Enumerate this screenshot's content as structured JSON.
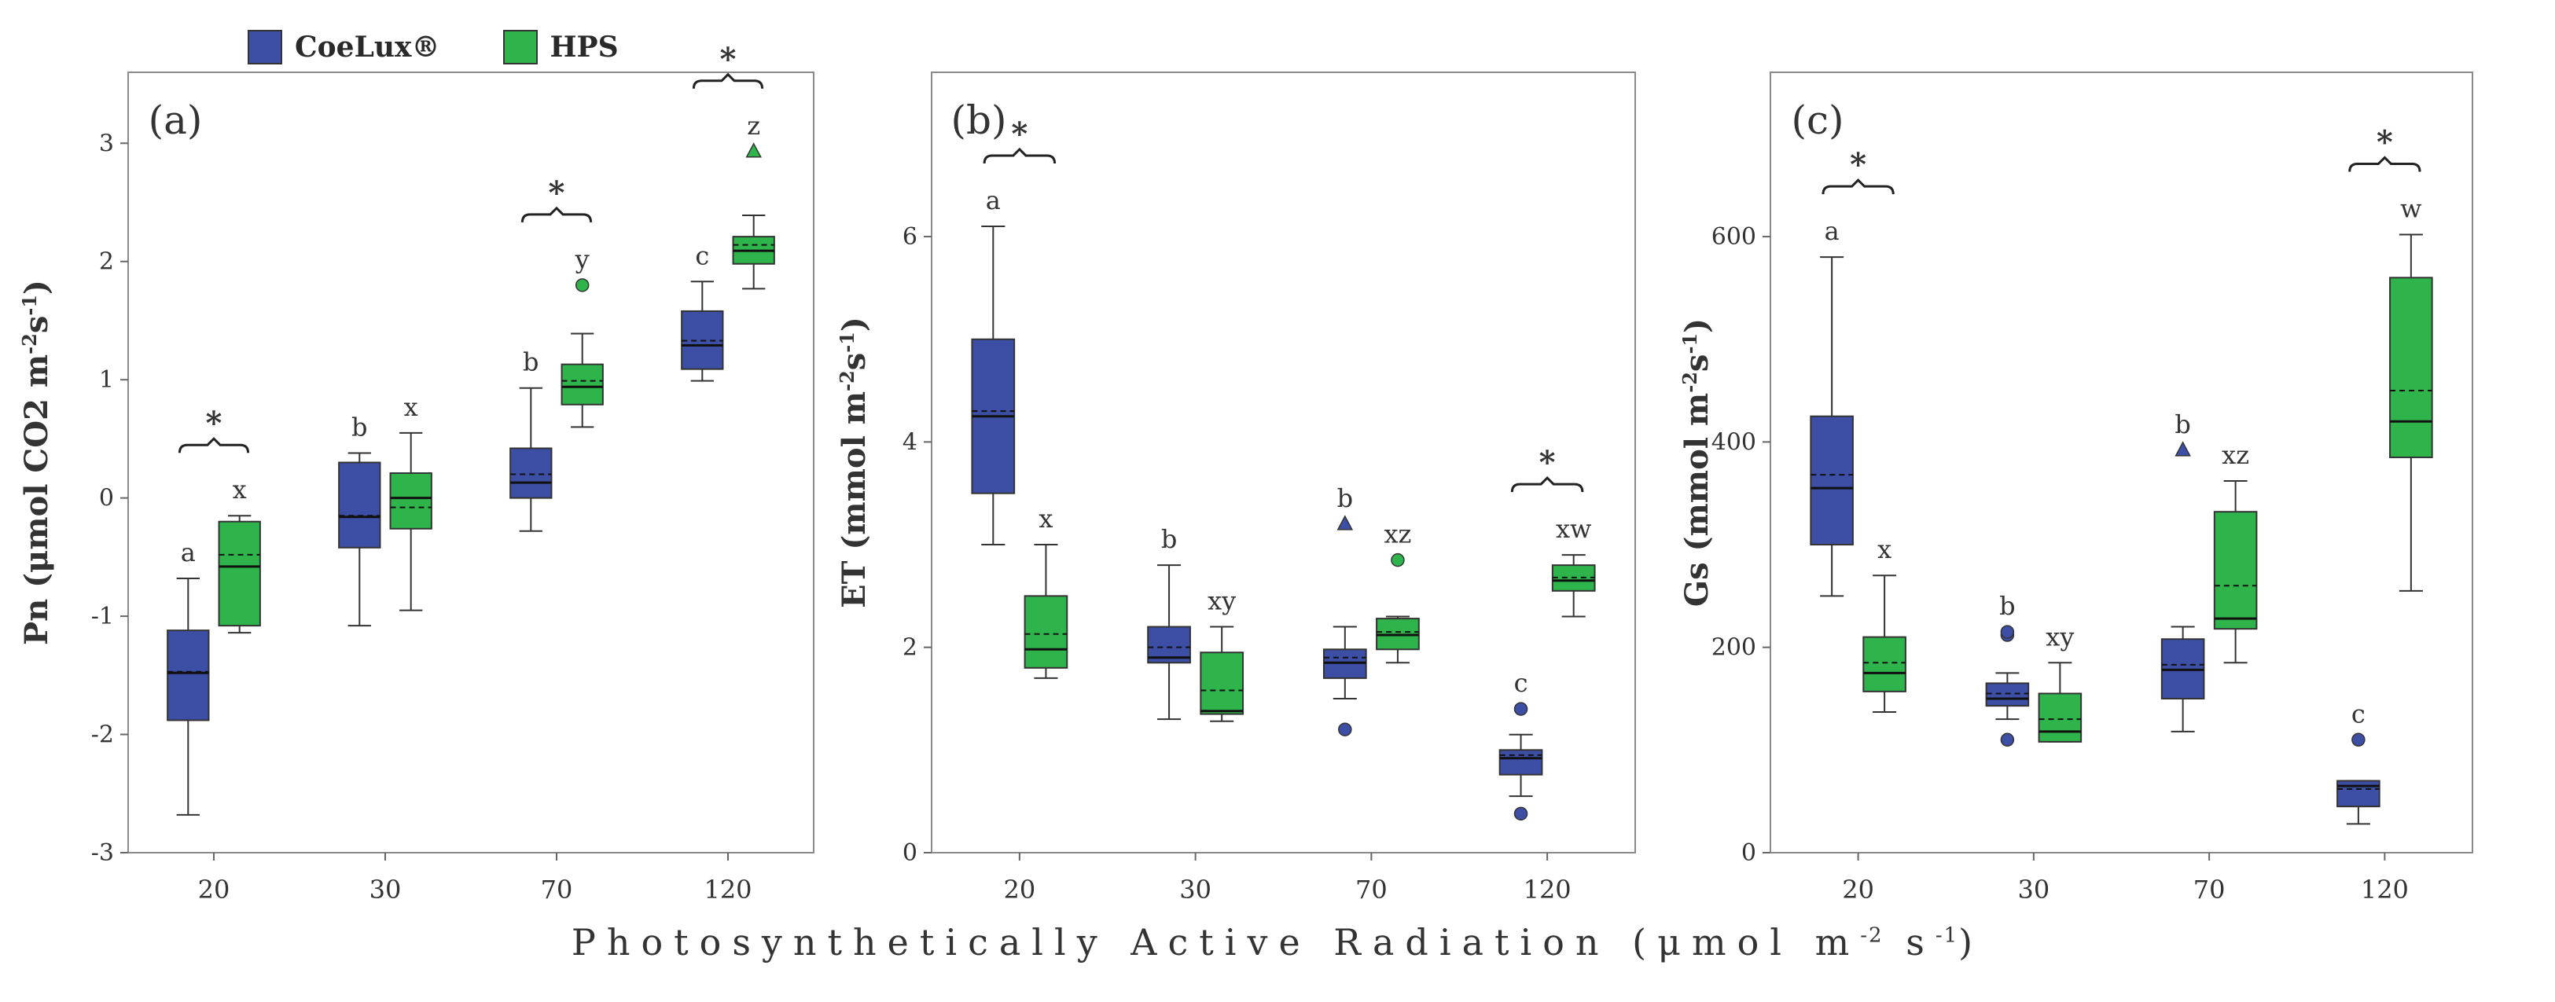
{
  "legend": [
    {
      "label": "CoeLux®",
      "color": "#3d4ea5"
    },
    {
      "label": "HPS",
      "color": "#2eb44a"
    }
  ],
  "x_axis_title": {
    "text": "Photosynthetically Active Radiation",
    "unit_open": "(μmol m",
    "sup1": "-2",
    "unit_mid": " s",
    "sup2": "-1",
    "unit_close": ")"
  },
  "chart_data": [
    {
      "type": "box",
      "panel_label": "(a)",
      "ylabel": {
        "main": "Pn (μmol CO2 m",
        "sup": "-2",
        "mid": "s",
        "sup2": "-1",
        "close": ")"
      },
      "ylim": [
        -3,
        3.6
      ],
      "yticks": [
        -3,
        -2,
        -1,
        0,
        1,
        2,
        3
      ],
      "categories": [
        "20",
        "30",
        "70",
        "120"
      ],
      "series": [
        {
          "name": "CoeLux®",
          "color": "#3d4ea5",
          "boxes": [
            {
              "min": -2.68,
              "q1": -1.88,
              "median": -1.48,
              "mean": -1.47,
              "q3": -1.12,
              "max": -0.68,
              "outliers": [],
              "letter": "a"
            },
            {
              "min": -1.08,
              "q1": -0.42,
              "median": -0.16,
              "mean": -0.15,
              "q3": 0.3,
              "max": 0.38,
              "outliers": [],
              "letter": "b"
            },
            {
              "min": -0.28,
              "q1": 0.0,
              "median": 0.13,
              "mean": 0.2,
              "q3": 0.42,
              "max": 0.93,
              "outliers": [],
              "letter": "b"
            },
            {
              "min": 0.99,
              "q1": 1.09,
              "median": 1.29,
              "mean": 1.33,
              "q3": 1.58,
              "max": 1.83,
              "outliers": [],
              "letter": "c"
            }
          ]
        },
        {
          "name": "HPS",
          "color": "#2eb44a",
          "boxes": [
            {
              "min": -1.14,
              "q1": -1.08,
              "median": -0.58,
              "mean": -0.48,
              "q3": -0.2,
              "max": -0.15,
              "outliers": [],
              "letter": "x"
            },
            {
              "min": -0.95,
              "q1": -0.26,
              "median": 0.0,
              "mean": -0.08,
              "q3": 0.21,
              "max": 0.55,
              "outliers": [],
              "letter": "x"
            },
            {
              "min": 0.6,
              "q1": 0.79,
              "median": 0.94,
              "mean": 0.99,
              "q3": 1.13,
              "max": 1.39,
              "outliers": [
                {
                  "v": 1.8,
                  "shape": "circle"
                }
              ],
              "letter": "y"
            },
            {
              "min": 1.77,
              "q1": 1.98,
              "median": 2.09,
              "mean": 2.14,
              "q3": 2.21,
              "max": 2.39,
              "outliers": [
                {
                  "v": 2.93,
                  "shape": "triangle"
                }
              ],
              "letter": "z"
            }
          ]
        }
      ],
      "significance": [
        "*",
        "",
        "*",
        "*"
      ]
    },
    {
      "type": "box",
      "panel_label": "(b)",
      "ylabel": {
        "main": "ET (mmol m",
        "sup": "-2",
        "mid": "s",
        "sup2": "-1",
        "close": ")"
      },
      "ylim": [
        0,
        7.6
      ],
      "yticks": [
        0,
        2,
        4,
        6
      ],
      "categories": [
        "20",
        "30",
        "70",
        "120"
      ],
      "series": [
        {
          "name": "CoeLux®",
          "color": "#3d4ea5",
          "boxes": [
            {
              "min": 3.0,
              "q1": 3.5,
              "median": 4.25,
              "mean": 4.3,
              "q3": 5.0,
              "max": 6.1,
              "outliers": [],
              "letter": "a"
            },
            {
              "min": 1.3,
              "q1": 1.85,
              "median": 1.9,
              "mean": 2.0,
              "q3": 2.2,
              "max": 2.8,
              "outliers": [],
              "letter": "b"
            },
            {
              "min": 1.5,
              "q1": 1.7,
              "median": 1.85,
              "mean": 1.9,
              "q3": 1.98,
              "max": 2.2,
              "outliers": [
                {
                  "v": 1.2,
                  "shape": "circle"
                },
                {
                  "v": 3.2,
                  "shape": "triangle"
                }
              ],
              "letter": "b"
            },
            {
              "min": 0.55,
              "q1": 0.76,
              "median": 0.92,
              "mean": 0.95,
              "q3": 1.0,
              "max": 1.15,
              "outliers": [
                {
                  "v": 0.38,
                  "shape": "circle"
                },
                {
                  "v": 1.4,
                  "shape": "circle"
                }
              ],
              "letter": "c"
            }
          ]
        },
        {
          "name": "HPS",
          "color": "#2eb44a",
          "boxes": [
            {
              "min": 1.7,
              "q1": 1.8,
              "median": 1.98,
              "mean": 2.13,
              "q3": 2.5,
              "max": 3.0,
              "outliers": [],
              "letter": "x"
            },
            {
              "min": 1.28,
              "q1": 1.35,
              "median": 1.38,
              "mean": 1.58,
              "q3": 1.95,
              "max": 2.2,
              "outliers": [],
              "letter": "xy"
            },
            {
              "min": 1.85,
              "q1": 1.98,
              "median": 2.12,
              "mean": 2.15,
              "q3": 2.28,
              "max": 2.3,
              "outliers": [
                {
                  "v": 2.85,
                  "shape": "circle"
                }
              ],
              "letter": "xz"
            },
            {
              "min": 2.3,
              "q1": 2.55,
              "median": 2.65,
              "mean": 2.68,
              "q3": 2.8,
              "max": 2.9,
              "outliers": [],
              "letter": "xw"
            }
          ]
        }
      ],
      "significance": [
        "*",
        "",
        "",
        "*"
      ]
    },
    {
      "type": "box",
      "panel_label": "(c)",
      "ylabel": {
        "main": "Gs (mmol m",
        "sup": "-2",
        "mid": "s",
        "sup2": "-1",
        "close": ")"
      },
      "ylim": [
        0,
        760
      ],
      "yticks": [
        0,
        200,
        400,
        600
      ],
      "categories": [
        "20",
        "30",
        "70",
        "120"
      ],
      "series": [
        {
          "name": "CoeLux®",
          "color": "#3d4ea5",
          "boxes": [
            {
              "min": 250,
              "q1": 300,
              "median": 355,
              "mean": 368,
              "q3": 425,
              "max": 580,
              "outliers": [],
              "letter": "a"
            },
            {
              "min": 130,
              "q1": 143,
              "median": 150,
              "mean": 155,
              "q3": 165,
              "max": 175,
              "outliers": [
                {
                  "v": 110,
                  "shape": "circle"
                },
                {
                  "v": 212,
                  "shape": "circle"
                },
                {
                  "v": 215,
                  "shape": "circle"
                }
              ],
              "letter": "b"
            },
            {
              "min": 118,
              "q1": 150,
              "median": 178,
              "mean": 183,
              "q3": 208,
              "max": 220,
              "outliers": [
                {
                  "v": 392,
                  "shape": "triangle"
                }
              ],
              "letter": "b"
            },
            {
              "min": 28,
              "q1": 45,
              "median": 65,
              "mean": 62,
              "q3": 70,
              "max": 70,
              "outliers": [
                {
                  "v": 110,
                  "shape": "circle"
                }
              ],
              "letter": "c"
            }
          ]
        },
        {
          "name": "HPS",
          "color": "#2eb44a",
          "boxes": [
            {
              "min": 137,
              "q1": 157,
              "median": 175,
              "mean": 185,
              "q3": 210,
              "max": 270,
              "outliers": [],
              "letter": "x"
            },
            {
              "min": 108,
              "q1": 108,
              "median": 118,
              "mean": 130,
              "q3": 155,
              "max": 185,
              "outliers": [],
              "letter": "xy"
            },
            {
              "min": 185,
              "q1": 218,
              "median": 228,
              "mean": 260,
              "q3": 332,
              "max": 362,
              "outliers": [],
              "letter": "xz"
            },
            {
              "min": 255,
              "q1": 385,
              "median": 420,
              "mean": 450,
              "q3": 560,
              "max": 602,
              "outliers": [],
              "letter": "w"
            }
          ]
        }
      ],
      "significance": [
        "*",
        "",
        "",
        "*"
      ]
    }
  ]
}
